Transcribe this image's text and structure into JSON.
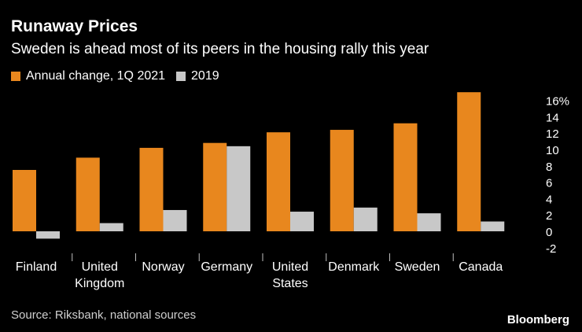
{
  "chart_data": {
    "type": "bar",
    "title": "Runaway Prices",
    "subtitle": "Sweden is ahead most of its peers in the housing rally this year",
    "categories": [
      [
        "Finland"
      ],
      [
        "United",
        "Kingdom"
      ],
      [
        "Norway"
      ],
      [
        "Germany"
      ],
      [
        "United",
        "States"
      ],
      [
        "Denmark"
      ],
      [
        "Sweden"
      ],
      [
        "Canada"
      ]
    ],
    "series": [
      {
        "name": "Annual change, 1Q 2021",
        "color": "#e8871e",
        "values": [
          7.5,
          9.0,
          10.2,
          10.8,
          12.1,
          12.4,
          13.2,
          17.0
        ]
      },
      {
        "name": "2019",
        "color": "#c8c8c8",
        "values": [
          -0.9,
          1.0,
          2.6,
          10.4,
          2.4,
          2.9,
          2.2,
          1.2
        ]
      }
    ],
    "y_ticks": [
      "-2",
      "0",
      "2",
      "4",
      "6",
      "8",
      "10",
      "12",
      "14",
      "16%"
    ],
    "y_tick_values": [
      -2,
      0,
      2,
      4,
      6,
      8,
      10,
      12,
      14,
      16
    ],
    "ylim": [
      -2,
      17
    ],
    "xlabel": "",
    "ylabel": "",
    "legend_placement": "top-left",
    "source": "Source: Riksbank, national sources",
    "brand": "Bloomberg"
  }
}
